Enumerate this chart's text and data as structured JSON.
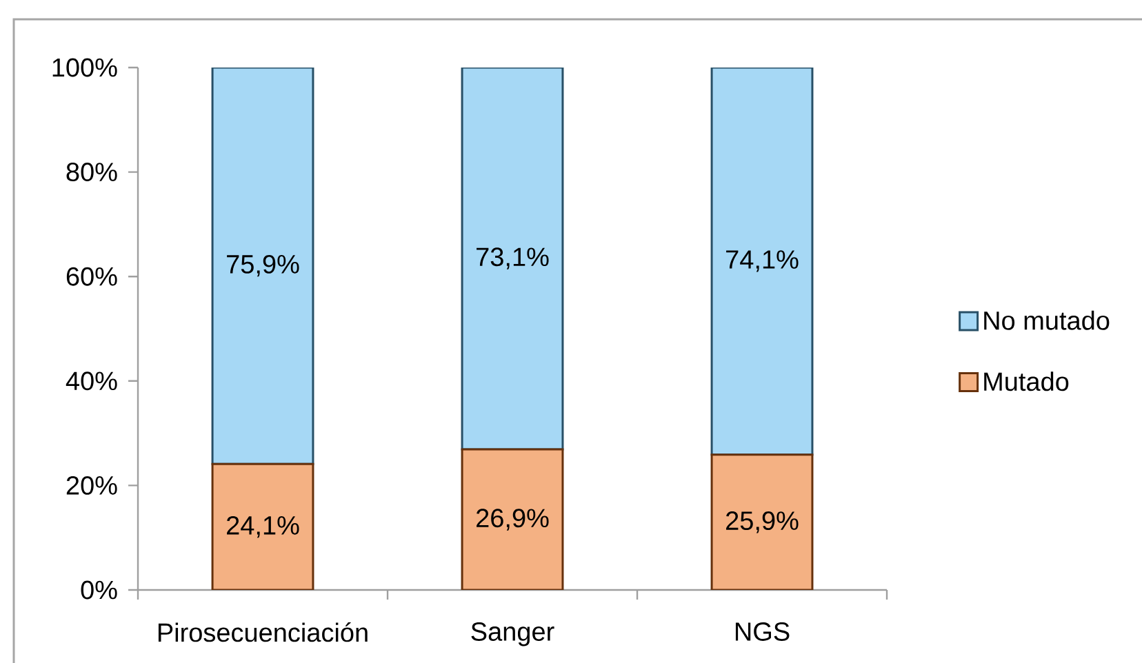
{
  "chart_data": {
    "type": "bar",
    "stacked": true,
    "categories": [
      "Pirosecuenciación",
      "Sanger",
      "NGS"
    ],
    "series": [
      {
        "name": "Mutado",
        "color": "#f4b183",
        "values": [
          24.1,
          26.9,
          25.9
        ],
        "value_labels": [
          "24,1%",
          "26,9%",
          "25,9%"
        ]
      },
      {
        "name": "No mutado",
        "color": "#a6d8f5",
        "values": [
          75.9,
          73.1,
          74.1
        ],
        "value_labels": [
          "75,9%",
          "73,1%",
          "74,1%"
        ]
      }
    ],
    "ylim": [
      0,
      100
    ],
    "yticks": [
      {
        "value": 0,
        "label": "0%"
      },
      {
        "value": 20,
        "label": "20%"
      },
      {
        "value": 40,
        "label": "40%"
      },
      {
        "value": 60,
        "label": "60%"
      },
      {
        "value": 80,
        "label": "80%"
      },
      {
        "value": 100,
        "label": "100%"
      }
    ],
    "legend": "right"
  }
}
